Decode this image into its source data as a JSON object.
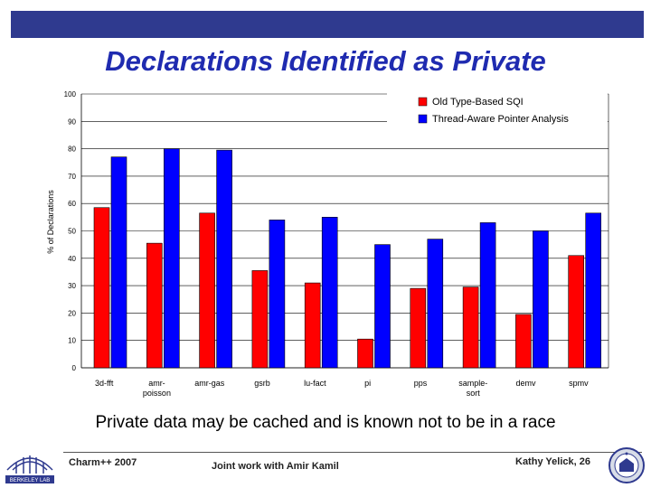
{
  "slide": {
    "title": "Declarations Identified as Private",
    "caption": "Private data may be cached and is known not to be in a race",
    "footer_left": "Charm++ 2007",
    "footer_center": "Joint work with Amir Kamil",
    "footer_right": "Kathy Yelick, 26",
    "logo_left_text": "BERKELEY LAB"
  },
  "chart_data": {
    "type": "bar",
    "title": "",
    "xlabel": "",
    "ylabel": "% of Declarations",
    "ylim": [
      0,
      100
    ],
    "yticks": [
      0,
      10,
      20,
      30,
      40,
      50,
      60,
      70,
      80,
      90,
      100
    ],
    "grid": true,
    "legend_position": "top-right",
    "categories": [
      [
        "3d-fft"
      ],
      [
        "amr-",
        "poisson"
      ],
      [
        "amr-gas"
      ],
      [
        "gsrb"
      ],
      [
        "lu-fact"
      ],
      [
        "pi"
      ],
      [
        "pps"
      ],
      [
        "sample-",
        "sort"
      ],
      [
        "demv"
      ],
      [
        "spmv"
      ]
    ],
    "series": [
      {
        "name": "Old Type-Based SQI",
        "color": "#ff0000",
        "values": [
          58.5,
          45.5,
          56.5,
          35.5,
          31,
          10.5,
          29,
          29.5,
          19.5,
          41
        ]
      },
      {
        "name": "Thread-Aware Pointer Analysis",
        "color": "#0000ff",
        "values": [
          77,
          80,
          79.5,
          54,
          55,
          45,
          47,
          53,
          50,
          56.5
        ]
      }
    ]
  }
}
